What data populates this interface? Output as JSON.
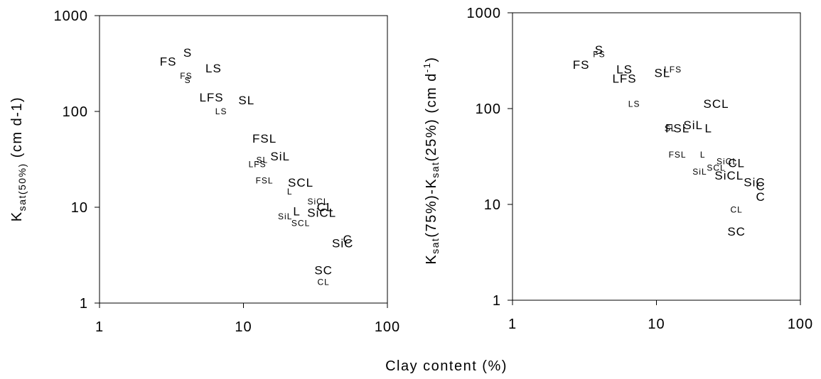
{
  "figure": {
    "shared_xlabel": "Clay content (%)"
  },
  "chart_data": [
    {
      "type": "scatter",
      "title": "",
      "xlabel": "Clay content (%)",
      "ylabel_main": "K",
      "ylabel_sub": "sat(50%)",
      "ylabel_tail": " (cm d-1)",
      "xscale": "log",
      "yscale": "log",
      "xlim": [
        1,
        100
      ],
      "ylim": [
        1,
        1000
      ],
      "xticks": [
        "1",
        "10",
        "100"
      ],
      "yticks": [
        "1",
        "10",
        "100",
        "1000"
      ],
      "grid": false,
      "legend": "none",
      "points": [
        {
          "label": "S",
          "x": 4.1,
          "y": 410,
          "size": "large"
        },
        {
          "label": "FS",
          "x": 3.0,
          "y": 330,
          "size": "large"
        },
        {
          "label": "LS",
          "x": 6.2,
          "y": 280,
          "size": "large"
        },
        {
          "label": "FS",
          "x": 4.0,
          "y": 235,
          "size": "small"
        },
        {
          "label": "S",
          "x": 4.1,
          "y": 212,
          "size": "small"
        },
        {
          "label": "LFS",
          "x": 6.0,
          "y": 140,
          "size": "large"
        },
        {
          "label": "SL",
          "x": 10.5,
          "y": 130,
          "size": "large"
        },
        {
          "label": "LS",
          "x": 7.0,
          "y": 100,
          "size": "small"
        },
        {
          "label": "FSL",
          "x": 14.0,
          "y": 52,
          "size": "large"
        },
        {
          "label": "SiL",
          "x": 18.0,
          "y": 34,
          "size": "large"
        },
        {
          "label": "SL",
          "x": 13.5,
          "y": 31,
          "size": "small"
        },
        {
          "label": "LFS",
          "x": 12.5,
          "y": 28,
          "size": "small"
        },
        {
          "label": "FSL",
          "x": 14.0,
          "y": 19,
          "size": "small"
        },
        {
          "label": "SCL",
          "x": 25.0,
          "y": 18,
          "size": "large"
        },
        {
          "label": "L",
          "x": 21.0,
          "y": 14.5,
          "size": "small"
        },
        {
          "label": "SiCL",
          "x": 33.0,
          "y": 11.5,
          "size": "small"
        },
        {
          "label": "CL",
          "x": 37.0,
          "y": 10,
          "size": "large"
        },
        {
          "label": "L",
          "x": 23.5,
          "y": 9,
          "size": "large"
        },
        {
          "label": "SiCL",
          "x": 35.0,
          "y": 8.7,
          "size": "large"
        },
        {
          "label": "SiL",
          "x": 19.5,
          "y": 8,
          "size": "small"
        },
        {
          "label": "SCL",
          "x": 25.0,
          "y": 6.8,
          "size": "small"
        },
        {
          "label": "C",
          "x": 53.0,
          "y": 4.6,
          "size": "large"
        },
        {
          "label": "SiC",
          "x": 49.0,
          "y": 4.2,
          "size": "large"
        },
        {
          "label": "SC",
          "x": 36.0,
          "y": 2.2,
          "size": "large"
        },
        {
          "label": "CL",
          "x": 36.0,
          "y": 1.65,
          "size": "small"
        }
      ]
    },
    {
      "type": "scatter",
      "title": "",
      "xlabel": "Clay content (%)",
      "ylabel_main": "K",
      "ylabel_sub": "sat",
      "ylabel_mid": "(75%)-K",
      "ylabel_sub2": "sat",
      "ylabel_mid2": "(25%) (cm d",
      "ylabel_sup": "-1",
      "ylabel_tail": ")",
      "xscale": "log",
      "yscale": "log",
      "xlim": [
        1,
        100
      ],
      "ylim": [
        1,
        1000
      ],
      "xticks": [
        "1",
        "10",
        "100"
      ],
      "yticks": [
        "1",
        "10",
        "100",
        "1000"
      ],
      "grid": false,
      "legend": "none",
      "points": [
        {
          "label": "S",
          "x": 4.0,
          "y": 410,
          "size": "large"
        },
        {
          "label": "FS",
          "x": 4.0,
          "y": 370,
          "size": "small"
        },
        {
          "label": "FS",
          "x": 3.0,
          "y": 285,
          "size": "large"
        },
        {
          "label": "LS",
          "x": 6.0,
          "y": 255,
          "size": "large"
        },
        {
          "label": "LFS",
          "x": 13.0,
          "y": 255,
          "size": "small"
        },
        {
          "label": "SL",
          "x": 11.0,
          "y": 235,
          "size": "large"
        },
        {
          "label": "LFS",
          "x": 6.0,
          "y": 205,
          "size": "large"
        },
        {
          "label": "LS",
          "x": 7.0,
          "y": 112,
          "size": "small"
        },
        {
          "label": "SCL",
          "x": 26.0,
          "y": 112,
          "size": "large"
        },
        {
          "label": "SiL",
          "x": 18.0,
          "y": 67,
          "size": "large"
        },
        {
          "label": "FSL",
          "x": 14.0,
          "y": 62,
          "size": "large"
        },
        {
          "label": "SL",
          "x": 12.5,
          "y": 62,
          "size": "small"
        },
        {
          "label": "L",
          "x": 23.0,
          "y": 62,
          "size": "large"
        },
        {
          "label": "FSL",
          "x": 14.0,
          "y": 33,
          "size": "small"
        },
        {
          "label": "L",
          "x": 21.0,
          "y": 33,
          "size": "small"
        },
        {
          "label": "SiCL",
          "x": 31.0,
          "y": 28,
          "size": "small"
        },
        {
          "label": "CL",
          "x": 36.0,
          "y": 27,
          "size": "large"
        },
        {
          "label": "SCL",
          "x": 26.0,
          "y": 24,
          "size": "small"
        },
        {
          "label": "SiL",
          "x": 20.0,
          "y": 22,
          "size": "small"
        },
        {
          "label": "SiCL",
          "x": 32.0,
          "y": 20,
          "size": "large"
        },
        {
          "label": "SiC",
          "x": 48.0,
          "y": 17,
          "size": "large"
        },
        {
          "label": "C",
          "x": 53.0,
          "y": 15.5,
          "size": "large"
        },
        {
          "label": "C",
          "x": 53.0,
          "y": 12,
          "size": "large"
        },
        {
          "label": "CL",
          "x": 36.0,
          "y": 8.8,
          "size": "small"
        },
        {
          "label": "SC",
          "x": 36.0,
          "y": 5.2,
          "size": "large"
        }
      ]
    }
  ]
}
